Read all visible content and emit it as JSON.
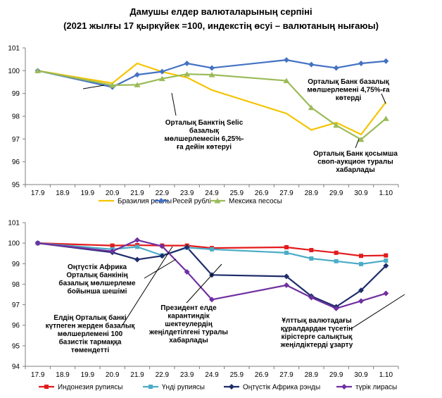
{
  "title_line1": "Дамушы елдер валюталарының серпіні",
  "title_line2": "(2021 жылғы 17 қыркүйек =100, индекстің өсуі – валютаның нығаюы)",
  "chart_data": [
    {
      "type": "line",
      "categories": [
        "17.9",
        "18.9",
        "19.9",
        "20.9",
        "21.9",
        "22.9",
        "23.9",
        "24.9",
        "25.9",
        "26.9",
        "27.9",
        "28.9",
        "29.9",
        "30.9",
        "1.10"
      ],
      "ylim": [
        95,
        101
      ],
      "yticks": [
        95,
        96,
        97,
        98,
        99,
        100,
        101
      ],
      "grid": false,
      "legend_position": "bottom",
      "series": [
        {
          "name": "Бразилия реалы",
          "color": "#f5c400",
          "marker": "none",
          "values": [
            100.0,
            null,
            null,
            99.45,
            100.32,
            99.95,
            99.7,
            99.15,
            null,
            null,
            98.12,
            97.4,
            97.72,
            97.2,
            98.62
          ]
        },
        {
          "name": "Ресей рублі",
          "color": "#4472c4",
          "marker": "diamond",
          "values": [
            100.0,
            null,
            null,
            99.28,
            99.82,
            99.96,
            100.32,
            100.12,
            null,
            null,
            100.47,
            100.27,
            100.12,
            100.32,
            100.42
          ]
        },
        {
          "name": "Мексика песосы",
          "color": "#9bbb59",
          "marker": "triangle",
          "values": [
            100.0,
            null,
            null,
            99.36,
            99.38,
            99.65,
            99.85,
            99.82,
            null,
            null,
            99.56,
            98.38,
            97.6,
            96.98,
            97.9
          ]
        }
      ],
      "annotations": [
        {
          "lines": [
            "Орталық Банктің Selic",
            "базалық",
            "мөлшерлемесін 6,25%-",
            "ға дейін көтеруі"
          ]
        },
        {
          "lines": [
            "Орталық Банк базалық",
            "мөлшерлемені 4,75%-ға",
            "көтерді"
          ]
        },
        {
          "lines": [
            "Орталық Банк қосымша",
            "своп-аукцион туралы",
            "хабарлады"
          ]
        }
      ]
    },
    {
      "type": "line",
      "categories": [
        "17.9",
        "18.9",
        "19.9",
        "20.9",
        "21.9",
        "22.9",
        "23.9",
        "24.9",
        "25.9",
        "26.9",
        "27.9",
        "28.9",
        "29.9",
        "30.9",
        "1.10"
      ],
      "ylim": [
        94,
        101
      ],
      "yticks": [
        94,
        95,
        96,
        97,
        98,
        99,
        100,
        101
      ],
      "grid": false,
      "legend_position": "bottom",
      "series": [
        {
          "name": "Индонезия рупиясы",
          "color": "#e31a1c",
          "marker": "square",
          "values": [
            100.0,
            null,
            null,
            99.88,
            99.9,
            99.88,
            99.88,
            99.76,
            null,
            null,
            99.8,
            99.66,
            99.53,
            99.38,
            99.4
          ]
        },
        {
          "name": "Үнді рупиясы",
          "color": "#4bacc6",
          "marker": "square",
          "values": [
            100.0,
            null,
            null,
            99.7,
            99.82,
            99.4,
            99.78,
            99.7,
            null,
            null,
            99.53,
            99.25,
            99.12,
            98.98,
            99.15
          ]
        },
        {
          "name": "Оңтүстік Африка рэнды",
          "color": "#1f2d6b",
          "marker": "diamond",
          "values": [
            100.0,
            null,
            null,
            99.55,
            99.2,
            99.38,
            99.8,
            98.45,
            null,
            null,
            98.38,
            97.42,
            96.9,
            97.7,
            98.9
          ]
        },
        {
          "name": "түрік лирасы",
          "color": "#7030a0",
          "marker": "diamond",
          "values": [
            100.0,
            null,
            null,
            99.6,
            100.15,
            99.85,
            98.6,
            97.25,
            null,
            null,
            97.95,
            97.35,
            96.82,
            97.18,
            97.55
          ]
        }
      ],
      "annotations": [
        {
          "lines": [
            "Оңтүстік Африка",
            "Орталық банкінің",
            "базалық мөлшерлеме",
            "бойынша шешімі"
          ]
        },
        {
          "lines": [
            "Елдің Орталық банкі",
            "күтпеген жерден базалық",
            "мөлшерлемені 100",
            "базистік тармаққа",
            "төмендетті"
          ]
        },
        {
          "lines": [
            "Президент елде",
            "карантиндік",
            "шектеулердің",
            "жеңілдетілгені туралы",
            "хабарлады"
          ]
        },
        {
          "lines": [
            "Ұлттық валютадағы",
            "құралдардан түсетін",
            "кірістерге салықтық",
            "жеңілдіктерді ұзарту"
          ]
        }
      ]
    }
  ]
}
